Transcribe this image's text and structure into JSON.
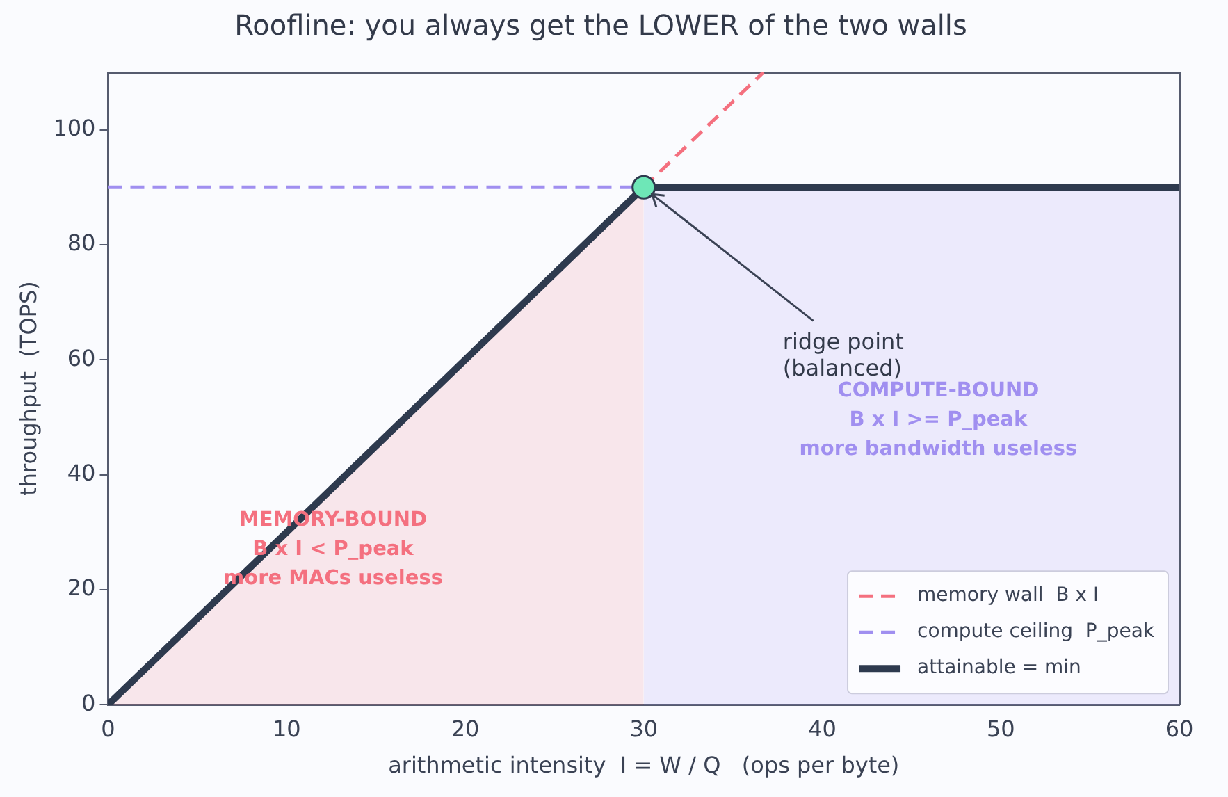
{
  "chart_data": {
    "type": "line",
    "title": "Roofline: you always get the LOWER of the two walls",
    "xlabel": "arithmetic intensity  I = W / Q   (ops per byte)",
    "ylabel": "throughput  (TOPS)",
    "xlim": [
      0,
      60
    ],
    "xticks": [
      0,
      10,
      20,
      30,
      40,
      50,
      60
    ],
    "ylim": [
      0,
      110
    ],
    "yticks": [
      0,
      20,
      40,
      60,
      80,
      100
    ],
    "grid": false,
    "legend": "bottom right",
    "series": [
      {
        "type": "area",
        "color": "#f4707f",
        "x": [
          0,
          30
        ],
        "values": [
          0,
          90
        ]
      },
      {
        "type": "area",
        "color": "#a08ff0",
        "x": [
          30,
          60
        ],
        "values": [
          90,
          90
        ]
      },
      {
        "name": "memory wall  B x I",
        "color": "#f4707f",
        "line_style": "dashed",
        "x": [
          30,
          36.7
        ],
        "values": [
          90,
          110
        ]
      },
      {
        "name": "compute ceiling  P_peak",
        "color": "#a08ff0",
        "line_style": "dashed",
        "x": [
          0,
          60
        ],
        "values": [
          90,
          90
        ]
      },
      {
        "name": "attainable = min",
        "color": "#2e3a4e",
        "line_style": "solid",
        "x": [
          0,
          30,
          60
        ],
        "values": [
          0,
          90,
          90
        ]
      },
      {
        "type": "scatter",
        "color": "#6ee7b7",
        "marker": "circle",
        "x": [
          30
        ],
        "values": [
          90
        ]
      }
    ],
    "annotations": [
      {
        "text": "ridge point\n(balanced)",
        "x": 30,
        "y": 90
      },
      "MEMORY-BOUND\nB x I < P_peak\nmore MACs useless",
      "COMPUTE-BOUND\nB x I >= P_peak\nmore bandwidth useless"
    ]
  }
}
